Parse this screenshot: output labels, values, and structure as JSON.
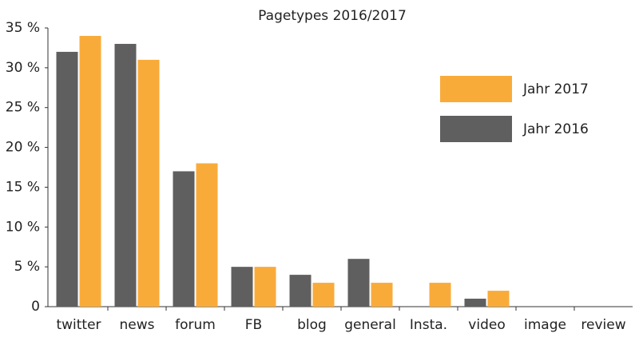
{
  "chart_data": {
    "type": "bar",
    "title": "Pagetypes 2016/2017",
    "categories": [
      "twitter",
      "news",
      "forum",
      "FB",
      "blog",
      "general",
      "Insta.",
      "video",
      "image",
      "review"
    ],
    "series": [
      {
        "name": "Jahr 2016",
        "color": "#5f5f5f",
        "values": [
          32,
          33,
          17,
          5,
          4,
          6,
          0,
          1,
          0,
          0
        ]
      },
      {
        "name": "Jahr 2017",
        "color": "#f9ab3a",
        "values": [
          34,
          31,
          18,
          5,
          3,
          3,
          3,
          2,
          0,
          0
        ]
      }
    ],
    "ylim": [
      0,
      35
    ],
    "yticks": [
      0,
      {
        "value": 5,
        "label": "5 %"
      },
      {
        "value": 10,
        "label": "10 %"
      },
      {
        "value": 15,
        "label": "15 %"
      },
      {
        "value": 20,
        "label": "20 %"
      },
      {
        "value": 25,
        "label": "25 %"
      },
      {
        "value": 30,
        "label": "30 %"
      },
      {
        "value": 35,
        "label": "35 %"
      }
    ],
    "legend": "upper right"
  }
}
